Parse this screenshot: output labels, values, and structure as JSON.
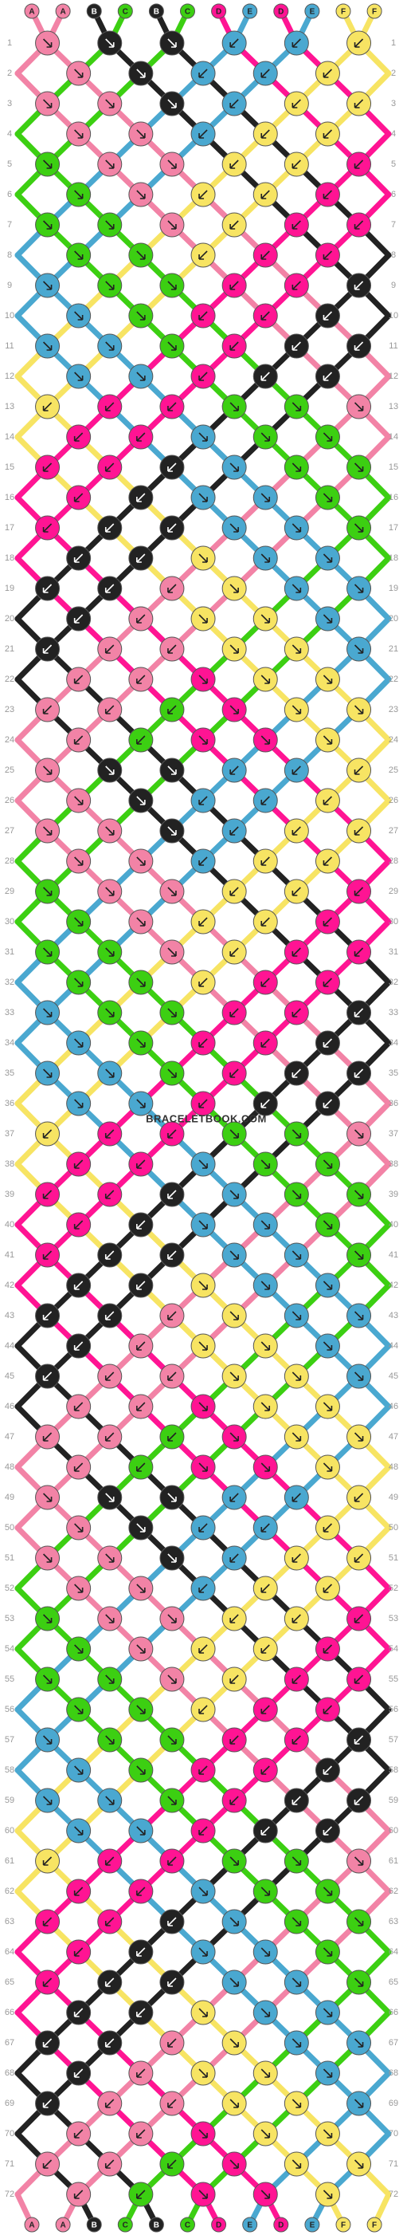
{
  "top_labels": [
    "A",
    "A",
    "B",
    "C",
    "B",
    "C",
    "D",
    "E",
    "D",
    "E",
    "F",
    "F"
  ],
  "bottom_labels": [
    "A",
    "A",
    "B",
    "C",
    "B",
    "C",
    "D",
    "E",
    "D",
    "E",
    "F",
    "F"
  ],
  "row_numbers": [
    1,
    2,
    3,
    4,
    5,
    6,
    7,
    8,
    9,
    10,
    11,
    12,
    13,
    14,
    15,
    16,
    17,
    18,
    19,
    20,
    21,
    22,
    23,
    24,
    25,
    26,
    27,
    28,
    29,
    30,
    31,
    32,
    33,
    34,
    35,
    36,
    37,
    38,
    39,
    40,
    41,
    42,
    43,
    44,
    45,
    46,
    47,
    48,
    49,
    50,
    51,
    52,
    53,
    54,
    55,
    56,
    57,
    58,
    59,
    60,
    61,
    62,
    63,
    64,
    65,
    66,
    67,
    68,
    69,
    70,
    71,
    72
  ],
  "watermark": "BRACELETBOOK.COM"
}
